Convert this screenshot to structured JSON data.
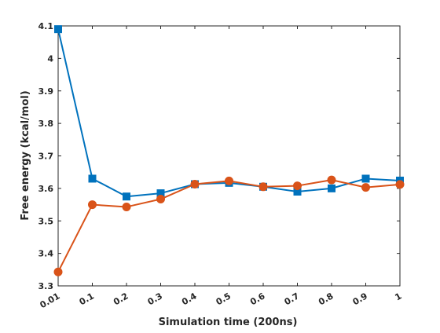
{
  "chart_data": {
    "type": "line",
    "title": "",
    "xlabel": "Simulation time (200ns)",
    "ylabel": "Free energy (kcal/mol)",
    "categories": [
      "0.01",
      "0.1",
      "0.2",
      "0.3",
      "0.4",
      "0.5",
      "0.6",
      "0.7",
      "0.8",
      "0.9",
      "1"
    ],
    "ylim": [
      3.3,
      4.1
    ],
    "yticks": [
      "3.3",
      "3.4",
      "3.5",
      "3.6",
      "3.7",
      "3.8",
      "3.9",
      "4",
      "4.1"
    ],
    "grid": false,
    "legend": "none",
    "series": [
      {
        "marker": "square",
        "color": "#0072BD",
        "values": [
          4.09,
          3.63,
          3.575,
          3.585,
          3.613,
          3.617,
          3.605,
          3.59,
          3.6,
          3.63,
          3.624
        ]
      },
      {
        "marker": "circle",
        "color": "#D95319",
        "values": [
          3.343,
          3.55,
          3.543,
          3.567,
          3.613,
          3.623,
          3.605,
          3.608,
          3.626,
          3.603,
          3.612
        ]
      }
    ]
  }
}
